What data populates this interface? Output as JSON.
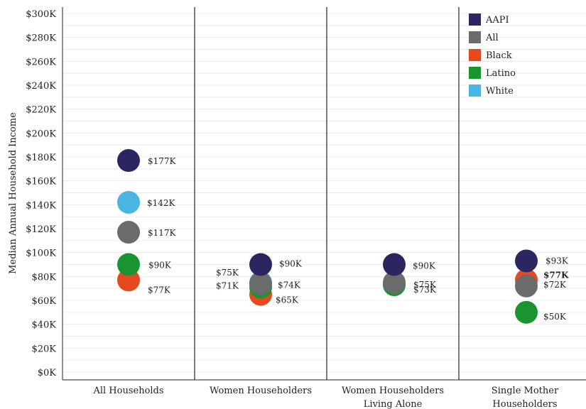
{
  "chart_data": {
    "type": "scatter",
    "ylabel": "Median Annual Household Income",
    "ylim": [
      0,
      300000
    ],
    "grid": true,
    "legend_position": "top-right",
    "y_ticks": [
      {
        "value": 0,
        "label": "$0K"
      },
      {
        "value": 20000,
        "label": "$20K"
      },
      {
        "value": 40000,
        "label": "$40K"
      },
      {
        "value": 60000,
        "label": "$60K"
      },
      {
        "value": 80000,
        "label": "$80K"
      },
      {
        "value": 100000,
        "label": "$100K"
      },
      {
        "value": 120000,
        "label": "$120K"
      },
      {
        "value": 140000,
        "label": "$140K"
      },
      {
        "value": 160000,
        "label": "$160K"
      },
      {
        "value": 180000,
        "label": "$180K"
      },
      {
        "value": 200000,
        "label": "$200K"
      },
      {
        "value": 220000,
        "label": "$220K"
      },
      {
        "value": 240000,
        "label": "$240K"
      },
      {
        "value": 260000,
        "label": "$260K"
      },
      {
        "value": 280000,
        "label": "$280K"
      },
      {
        "value": 300000,
        "label": "$300K"
      }
    ],
    "categories": [
      [
        "All Households"
      ],
      [
        "Women Householders"
      ],
      [
        "Women Householders",
        "Living Alone"
      ],
      [
        "Single Mother",
        "Householders"
      ]
    ],
    "series": [
      {
        "name": "AAPI",
        "color": "#2b2560"
      },
      {
        "name": "All",
        "color": "#6b6b6b"
      },
      {
        "name": "Black",
        "color": "#e4491f"
      },
      {
        "name": "Latino",
        "color": "#1a9431"
      },
      {
        "name": "White",
        "color": "#4ab4e2"
      }
    ],
    "points": [
      {
        "category": 0,
        "series": "AAPI",
        "value": 177000,
        "label": "$177K"
      },
      {
        "category": 0,
        "series": "White",
        "value": 142000,
        "label": "$142K"
      },
      {
        "category": 0,
        "series": "All",
        "value": 117000,
        "label": "$117K"
      },
      {
        "category": 0,
        "series": "Latino",
        "value": 90000,
        "label": "$90K"
      },
      {
        "category": 0,
        "series": "Black",
        "value": 77000,
        "label": "$77K"
      },
      {
        "category": 1,
        "series": "AAPI",
        "value": 90000,
        "label": "$90K"
      },
      {
        "category": 1,
        "series": "White",
        "value": 75000,
        "label": "$75K"
      },
      {
        "category": 1,
        "series": "Latino",
        "value": 71000,
        "label": "$71K"
      },
      {
        "category": 1,
        "series": "Black",
        "value": 65000,
        "label": "$65K"
      },
      {
        "category": 1,
        "series": "All",
        "value": 74000,
        "label": "$74K"
      },
      {
        "category": 2,
        "series": "AAPI",
        "value": 90000,
        "label": "$90K"
      },
      {
        "category": 2,
        "series": "Latino",
        "value": 73000,
        "label": "$73K"
      },
      {
        "category": 2,
        "series": "All",
        "value": 75000,
        "label": "$75K"
      },
      {
        "category": 3,
        "series": "AAPI",
        "value": 93000,
        "label": "$93K"
      },
      {
        "category": 3,
        "series": "Black",
        "value": 77000,
        "label": "$77K"
      },
      {
        "category": 3,
        "series": "All",
        "value": 72000,
        "label": "$72K"
      },
      {
        "category": 3,
        "series": "Latino",
        "value": 50000,
        "label": "$50K"
      }
    ]
  }
}
